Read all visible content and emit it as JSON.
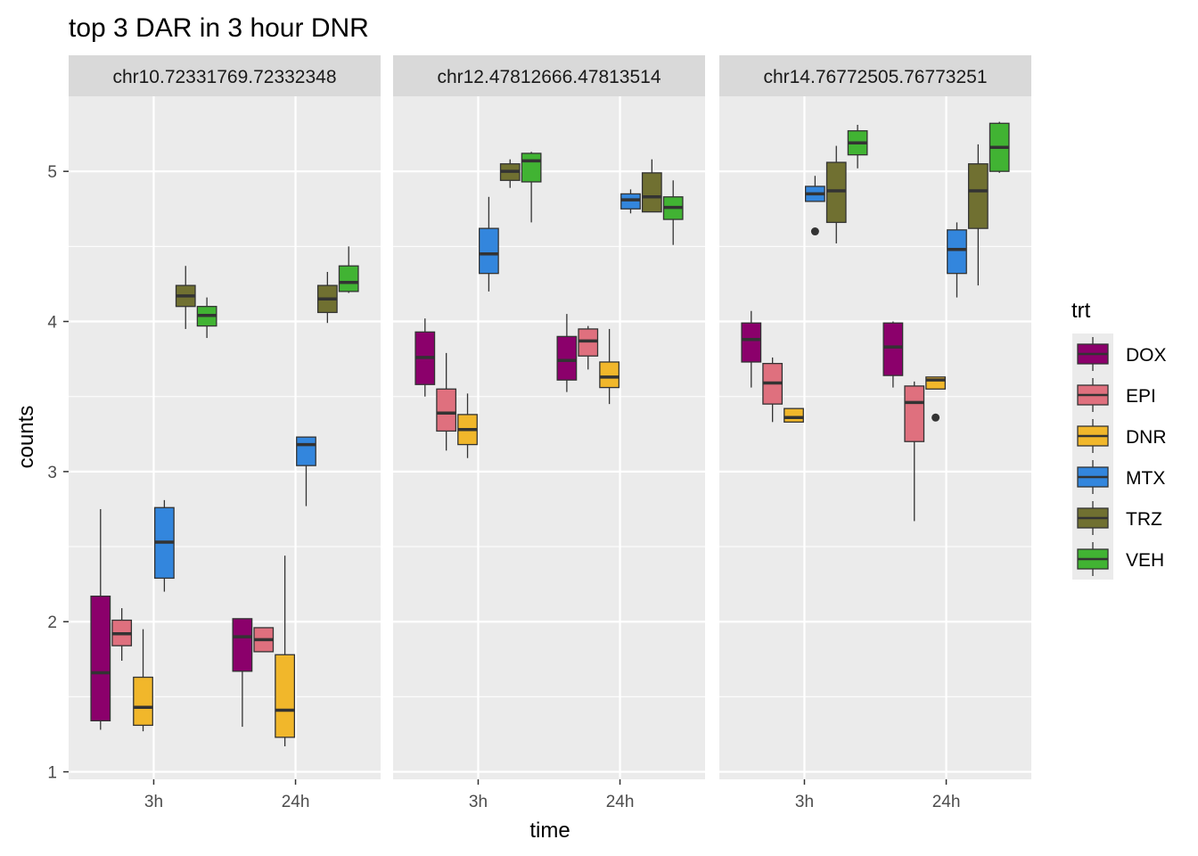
{
  "chart_data": {
    "type": "boxplot",
    "title": "top 3 DAR in 3 hour DNR",
    "xlabel": "time",
    "ylabel": "counts",
    "ylim": [
      0.95,
      5.5
    ],
    "y_ticks": [
      1,
      2,
      3,
      4,
      5
    ],
    "categories": [
      "3h",
      "24h"
    ],
    "grid": true,
    "legend": {
      "title": "trt",
      "position": "right",
      "entries": [
        {
          "name": "DOX",
          "color": "#8B006B"
        },
        {
          "name": "EPI",
          "color": "#DF707E"
        },
        {
          "name": "DNR",
          "color": "#F1B72B"
        },
        {
          "name": "MTX",
          "color": "#3386DD"
        },
        {
          "name": "TRZ",
          "color": "#707031"
        },
        {
          "name": "VEH",
          "color": "#41B333"
        }
      ]
    },
    "panels": [
      {
        "label": "chr10.72331769.72332348",
        "boxes": [
          {
            "time": "3h",
            "trt": "DOX",
            "min": 1.28,
            "q1": 1.34,
            "median": 1.66,
            "q3": 2.17,
            "max": 2.75
          },
          {
            "time": "3h",
            "trt": "EPI",
            "min": 1.74,
            "q1": 1.84,
            "median": 1.92,
            "q3": 2.01,
            "max": 2.09
          },
          {
            "time": "3h",
            "trt": "DNR",
            "min": 1.27,
            "q1": 1.31,
            "median": 1.43,
            "q3": 1.63,
            "max": 1.95
          },
          {
            "time": "3h",
            "trt": "MTX",
            "min": 2.2,
            "q1": 2.29,
            "median": 2.53,
            "q3": 2.76,
            "max": 2.81
          },
          {
            "time": "3h",
            "trt": "TRZ",
            "min": 3.95,
            "q1": 4.1,
            "median": 4.17,
            "q3": 4.24,
            "max": 4.37
          },
          {
            "time": "3h",
            "trt": "VEH",
            "min": 3.89,
            "q1": 3.97,
            "median": 4.04,
            "q3": 4.1,
            "max": 4.16
          },
          {
            "time": "24h",
            "trt": "DOX",
            "min": 1.3,
            "q1": 1.67,
            "median": 1.9,
            "q3": 2.02,
            "max": 2.02
          },
          {
            "time": "24h",
            "trt": "EPI",
            "min": 1.8,
            "q1": 1.8,
            "median": 1.88,
            "q3": 1.96,
            "max": 1.96
          },
          {
            "time": "24h",
            "trt": "DNR",
            "min": 1.17,
            "q1": 1.23,
            "median": 1.41,
            "q3": 1.78,
            "max": 2.44
          },
          {
            "time": "24h",
            "trt": "MTX",
            "min": 2.77,
            "q1": 3.04,
            "median": 3.18,
            "q3": 3.23,
            "max": 3.23
          },
          {
            "time": "24h",
            "trt": "TRZ",
            "min": 3.99,
            "q1": 4.06,
            "median": 4.15,
            "q3": 4.24,
            "max": 4.33
          },
          {
            "time": "24h",
            "trt": "VEH",
            "min": 4.19,
            "q1": 4.2,
            "median": 4.26,
            "q3": 4.37,
            "max": 4.5
          }
        ]
      },
      {
        "label": "chr12.47812666.47813514",
        "boxes": [
          {
            "time": "3h",
            "trt": "DOX",
            "min": 3.5,
            "q1": 3.58,
            "median": 3.76,
            "q3": 3.93,
            "max": 4.02
          },
          {
            "time": "3h",
            "trt": "EPI",
            "min": 3.14,
            "q1": 3.27,
            "median": 3.39,
            "q3": 3.55,
            "max": 3.79
          },
          {
            "time": "3h",
            "trt": "DNR",
            "min": 3.09,
            "q1": 3.18,
            "median": 3.28,
            "q3": 3.38,
            "max": 3.52
          },
          {
            "time": "3h",
            "trt": "MTX",
            "min": 4.2,
            "q1": 4.32,
            "median": 4.45,
            "q3": 4.62,
            "max": 4.83
          },
          {
            "time": "3h",
            "trt": "TRZ",
            "min": 4.89,
            "q1": 4.94,
            "median": 5.0,
            "q3": 5.05,
            "max": 5.08
          },
          {
            "time": "3h",
            "trt": "VEH",
            "min": 4.66,
            "q1": 4.93,
            "median": 5.07,
            "q3": 5.12,
            "max": 5.13
          },
          {
            "time": "24h",
            "trt": "DOX",
            "min": 3.53,
            "q1": 3.61,
            "median": 3.74,
            "q3": 3.9,
            "max": 4.05
          },
          {
            "time": "24h",
            "trt": "EPI",
            "min": 3.68,
            "q1": 3.77,
            "median": 3.87,
            "q3": 3.95,
            "max": 3.97
          },
          {
            "time": "24h",
            "trt": "DNR",
            "min": 3.45,
            "q1": 3.56,
            "median": 3.63,
            "q3": 3.73,
            "max": 3.95
          },
          {
            "time": "24h",
            "trt": "MTX",
            "min": 4.72,
            "q1": 4.75,
            "median": 4.81,
            "q3": 4.85,
            "max": 4.88
          },
          {
            "time": "24h",
            "trt": "TRZ",
            "min": 4.73,
            "q1": 4.73,
            "median": 4.83,
            "q3": 4.99,
            "max": 5.08
          },
          {
            "time": "24h",
            "trt": "VEH",
            "min": 4.51,
            "q1": 4.68,
            "median": 4.76,
            "q3": 4.83,
            "max": 4.94
          }
        ]
      },
      {
        "label": "chr14.76772505.76773251",
        "boxes": [
          {
            "time": "3h",
            "trt": "DOX",
            "min": 3.56,
            "q1": 3.73,
            "median": 3.88,
            "q3": 3.99,
            "max": 4.07
          },
          {
            "time": "3h",
            "trt": "EPI",
            "min": 3.33,
            "q1": 3.45,
            "median": 3.59,
            "q3": 3.72,
            "max": 3.76
          },
          {
            "time": "3h",
            "trt": "DNR",
            "min": 3.33,
            "q1": 3.33,
            "median": 3.36,
            "q3": 3.42,
            "max": 3.42
          },
          {
            "time": "3h",
            "trt": "MTX",
            "min": 4.8,
            "q1": 4.8,
            "median": 4.85,
            "q3": 4.9,
            "max": 4.97,
            "outliers": [
              4.6
            ]
          },
          {
            "time": "3h",
            "trt": "TRZ",
            "min": 4.52,
            "q1": 4.66,
            "median": 4.87,
            "q3": 5.06,
            "max": 5.17
          },
          {
            "time": "3h",
            "trt": "VEH",
            "min": 5.02,
            "q1": 5.11,
            "median": 5.19,
            "q3": 5.27,
            "max": 5.31
          },
          {
            "time": "24h",
            "trt": "DOX",
            "min": 3.56,
            "q1": 3.64,
            "median": 3.83,
            "q3": 3.99,
            "max": 4.0
          },
          {
            "time": "24h",
            "trt": "EPI",
            "min": 2.67,
            "q1": 3.2,
            "median": 3.46,
            "q3": 3.57,
            "max": 3.6
          },
          {
            "time": "24h",
            "trt": "DNR",
            "min": 3.55,
            "q1": 3.55,
            "median": 3.61,
            "q3": 3.63,
            "max": 3.63,
            "outliers": [
              3.36
            ]
          },
          {
            "time": "24h",
            "trt": "MTX",
            "min": 4.16,
            "q1": 4.32,
            "median": 4.48,
            "q3": 4.61,
            "max": 4.66
          },
          {
            "time": "24h",
            "trt": "TRZ",
            "min": 4.24,
            "q1": 4.62,
            "median": 4.87,
            "q3": 5.05,
            "max": 5.18
          },
          {
            "time": "24h",
            "trt": "VEH",
            "min": 4.99,
            "q1": 5.0,
            "median": 5.16,
            "q3": 5.32,
            "max": 5.33
          }
        ]
      }
    ]
  }
}
